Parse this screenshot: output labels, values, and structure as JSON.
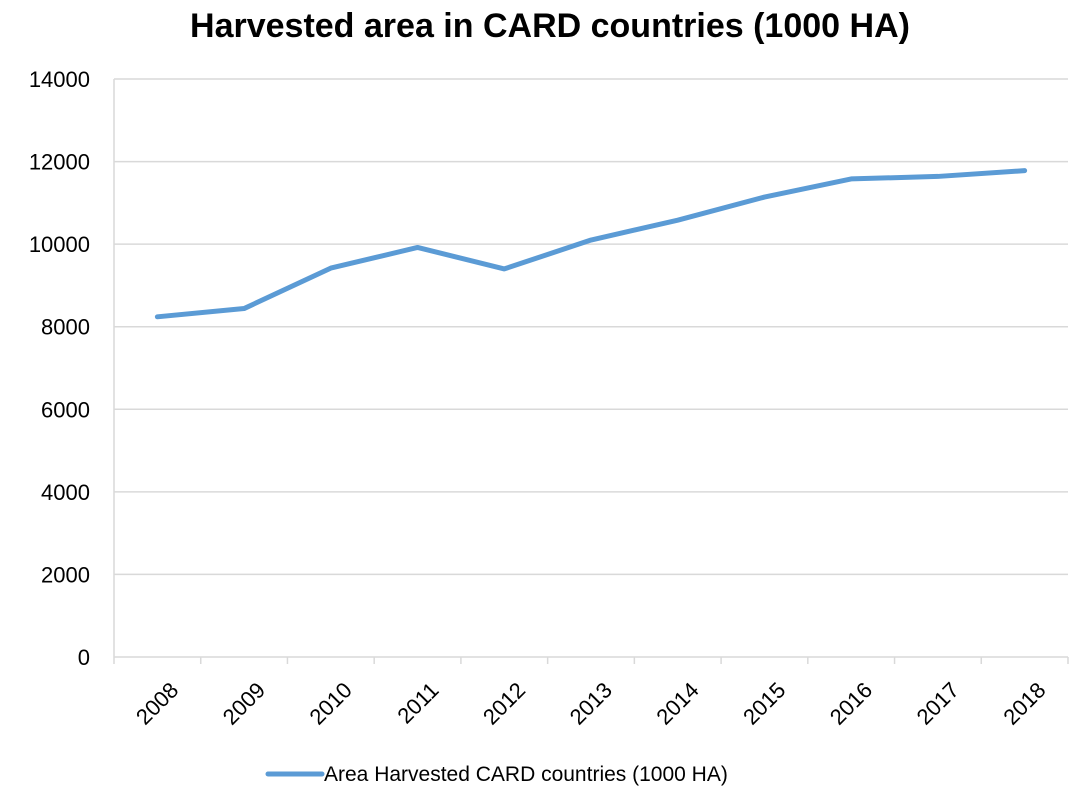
{
  "chart_data": {
    "type": "line",
    "title": "Harvested area in CARD countries (1000 HA)",
    "xlabel": "",
    "ylabel": "",
    "categories": [
      "2008",
      "2009",
      "2010",
      "2011",
      "2012",
      "2013",
      "2014",
      "2015",
      "2016",
      "2017",
      "2018"
    ],
    "series": [
      {
        "name": "Area Harvested CARD countries (1000 HA)",
        "values": [
          8240,
          8440,
          9420,
          9920,
          9400,
          10100,
          10580,
          11140,
          11580,
          11640,
          11780
        ],
        "color": "#5B9BD5"
      }
    ],
    "ylim": [
      0,
      14000
    ],
    "yticks": [
      "0",
      "2000",
      "4000",
      "6000",
      "8000",
      "10000",
      "12000",
      "14000"
    ],
    "grid": true,
    "legend_position": "bottom"
  }
}
